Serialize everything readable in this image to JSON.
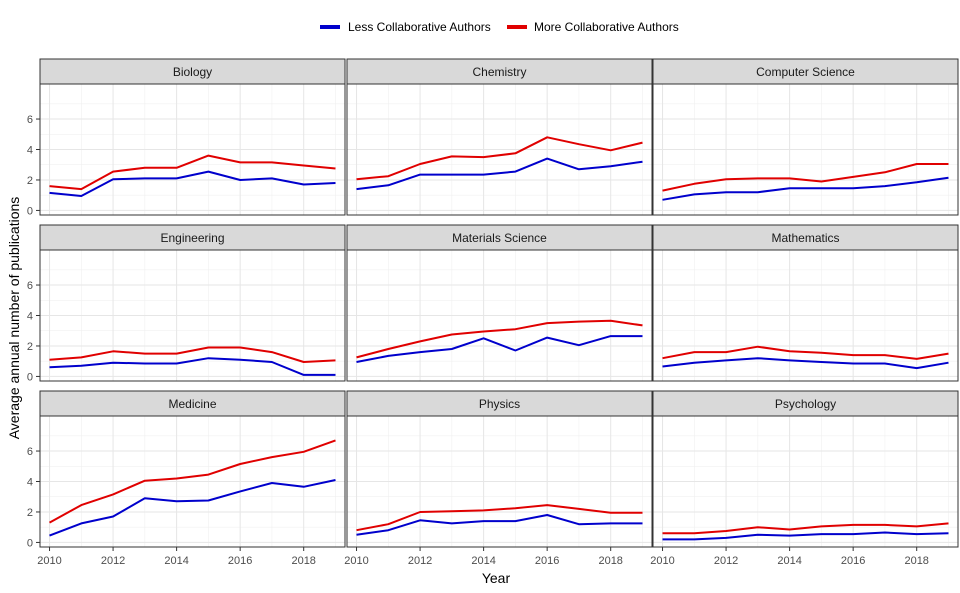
{
  "chart_data": {
    "type": "line",
    "xlabel": "Year",
    "ylabel": "Average annual number of publications",
    "ylim": [
      -0.3,
      8.3
    ],
    "xlim": [
      2009.7,
      2019.3
    ],
    "yticks": [
      0,
      2,
      4,
      6
    ],
    "xticks": [
      2010,
      2012,
      2014,
      2016,
      2018
    ],
    "grid": true,
    "legend_position": "top",
    "legend": [
      {
        "name": "Less Collaborative Authors",
        "color": "#0000cc"
      },
      {
        "name": "More Collaborative Authors",
        "color": "#e00000"
      }
    ],
    "x": [
      2010,
      2011,
      2012,
      2013,
      2014,
      2015,
      2016,
      2017,
      2018,
      2019
    ],
    "panels": [
      {
        "title": "Biology",
        "series": [
          {
            "name": "Less Collaborative Authors",
            "values": [
              1.15,
              0.95,
              2.05,
              2.1,
              2.1,
              2.55,
              2.0,
              2.1,
              1.7,
              1.8
            ]
          },
          {
            "name": "More Collaborative Authors",
            "values": [
              1.6,
              1.4,
              2.55,
              2.8,
              2.8,
              3.6,
              3.15,
              3.15,
              2.95,
              2.75
            ]
          }
        ]
      },
      {
        "title": "Chemistry",
        "series": [
          {
            "name": "Less Collaborative Authors",
            "values": [
              1.4,
              1.65,
              2.35,
              2.35,
              2.35,
              2.55,
              3.4,
              2.7,
              2.9,
              3.2
            ]
          },
          {
            "name": "More Collaborative Authors",
            "values": [
              2.05,
              2.25,
              3.05,
              3.55,
              3.5,
              3.75,
              4.8,
              4.35,
              3.95,
              4.45
            ]
          }
        ]
      },
      {
        "title": "Computer Science",
        "series": [
          {
            "name": "Less Collaborative Authors",
            "values": [
              0.7,
              1.05,
              1.2,
              1.2,
              1.45,
              1.45,
              1.45,
              1.6,
              1.85,
              2.15
            ]
          },
          {
            "name": "More Collaborative Authors",
            "values": [
              1.3,
              1.75,
              2.05,
              2.1,
              2.1,
              1.9,
              2.2,
              2.5,
              3.05,
              3.05
            ]
          }
        ]
      },
      {
        "title": "Engineering",
        "series": [
          {
            "name": "Less Collaborative Authors",
            "values": [
              0.6,
              0.7,
              0.9,
              0.85,
              0.85,
              1.2,
              1.1,
              0.95,
              0.1,
              0.1
            ]
          },
          {
            "name": "More Collaborative Authors",
            "values": [
              1.1,
              1.25,
              1.65,
              1.5,
              1.5,
              1.9,
              1.9,
              1.6,
              0.95,
              1.05
            ]
          }
        ]
      },
      {
        "title": "Materials Science",
        "series": [
          {
            "name": "Less Collaborative Authors",
            "values": [
              0.95,
              1.35,
              1.6,
              1.8,
              2.5,
              1.7,
              2.55,
              2.05,
              2.65,
              2.65
            ]
          },
          {
            "name": "More Collaborative Authors",
            "values": [
              1.25,
              1.8,
              2.3,
              2.75,
              2.95,
              3.1,
              3.5,
              3.6,
              3.65,
              3.35
            ]
          }
        ]
      },
      {
        "title": "Mathematics",
        "series": [
          {
            "name": "Less Collaborative Authors",
            "values": [
              0.65,
              0.9,
              1.05,
              1.2,
              1.05,
              0.95,
              0.85,
              0.85,
              0.55,
              0.9
            ]
          },
          {
            "name": "More Collaborative Authors",
            "values": [
              1.2,
              1.6,
              1.6,
              1.95,
              1.65,
              1.55,
              1.4,
              1.4,
              1.15,
              1.5
            ]
          }
        ]
      },
      {
        "title": "Medicine",
        "series": [
          {
            "name": "Less Collaborative Authors",
            "values": [
              0.45,
              1.25,
              1.7,
              2.9,
              2.7,
              2.75,
              3.35,
              3.9,
              3.65,
              4.1
            ]
          },
          {
            "name": "More Collaborative Authors",
            "values": [
              1.3,
              2.45,
              3.15,
              4.05,
              4.2,
              4.45,
              5.15,
              5.6,
              5.95,
              6.7
            ]
          }
        ]
      },
      {
        "title": "Physics",
        "series": [
          {
            "name": "Less Collaborative Authors",
            "values": [
              0.5,
              0.8,
              1.45,
              1.25,
              1.4,
              1.4,
              1.8,
              1.2,
              1.25,
              1.25
            ]
          },
          {
            "name": "More Collaborative Authors",
            "values": [
              0.8,
              1.2,
              2.0,
              2.05,
              2.1,
              2.25,
              2.45,
              2.2,
              1.95,
              1.95
            ]
          }
        ]
      },
      {
        "title": "Psychology",
        "series": [
          {
            "name": "Less Collaborative Authors",
            "values": [
              0.2,
              0.2,
              0.3,
              0.5,
              0.45,
              0.55,
              0.55,
              0.65,
              0.55,
              0.6
            ]
          },
          {
            "name": "More Collaborative Authors",
            "values": [
              0.6,
              0.6,
              0.75,
              1.0,
              0.85,
              1.05,
              1.15,
              1.15,
              1.05,
              1.25
            ]
          }
        ]
      }
    ]
  }
}
